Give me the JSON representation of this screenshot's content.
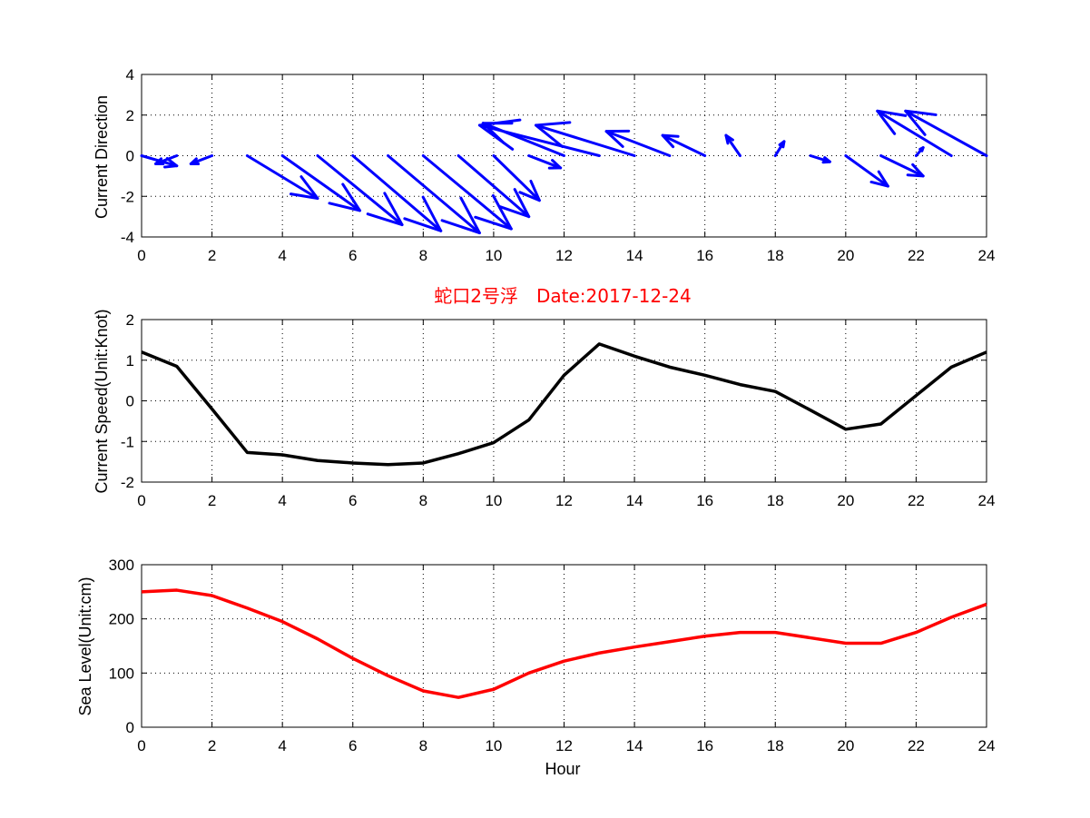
{
  "colors": {
    "arrow": "#0000ff",
    "speed": "#000000",
    "sea": "#ff0000",
    "title": "#ff0000"
  },
  "chart_data": [
    {
      "type": "quiver",
      "ylabel": "Current Direction",
      "xlim": [
        0,
        24
      ],
      "ylim": [
        -4,
        4
      ],
      "xticks": [
        0,
        2,
        4,
        6,
        8,
        10,
        12,
        14,
        16,
        18,
        20,
        22,
        24
      ],
      "yticks": [
        -4,
        -2,
        0,
        2,
        4
      ],
      "grid": true,
      "x": [
        0,
        1,
        2,
        3,
        4,
        5,
        6,
        7,
        8,
        9,
        10,
        11,
        12,
        13,
        14,
        15,
        16,
        17,
        18,
        19,
        20,
        21,
        22,
        23,
        24
      ],
      "u": [
        1.0,
        -0.6,
        -0.6,
        2.0,
        2.2,
        2.4,
        2.5,
        2.6,
        2.5,
        2.0,
        1.3,
        0.9,
        -2.3,
        -3.4,
        -2.8,
        -1.8,
        -1.2,
        -0.4,
        0.25,
        0.55,
        1.2,
        1.2,
        0.2,
        -2.1,
        -2.3
      ],
      "v": [
        -0.5,
        -0.4,
        -0.4,
        -2.1,
        -2.7,
        -3.4,
        -3.7,
        -3.8,
        -3.6,
        -3.0,
        -2.2,
        -0.6,
        1.6,
        1.5,
        1.5,
        1.2,
        1.0,
        1.0,
        0.7,
        -0.3,
        -1.5,
        -1.0,
        0.4,
        2.2,
        2.2
      ]
    },
    {
      "type": "line",
      "title": "蛇口2号浮　Date:2017-12-24",
      "ylabel": "Current Speed(Unit:Knot)",
      "xlim": [
        0,
        24
      ],
      "ylim": [
        -2,
        2
      ],
      "xticks": [
        0,
        2,
        4,
        6,
        8,
        10,
        12,
        14,
        16,
        18,
        20,
        22,
        24
      ],
      "yticks": [
        -2,
        -1,
        0,
        1,
        2
      ],
      "grid": true,
      "x": [
        0,
        1,
        2,
        3,
        4,
        5,
        6,
        7,
        8,
        9,
        10,
        11,
        12,
        13,
        14,
        15,
        16,
        17,
        18,
        19,
        20,
        21,
        22,
        23,
        24
      ],
      "values": [
        1.2,
        0.85,
        -0.2,
        -1.27,
        -1.33,
        -1.47,
        -1.53,
        -1.57,
        -1.53,
        -1.3,
        -1.03,
        -0.47,
        0.63,
        1.4,
        1.1,
        0.83,
        0.63,
        0.4,
        0.23,
        -0.23,
        -0.7,
        -0.57,
        0.13,
        0.83,
        1.2
      ]
    },
    {
      "type": "line",
      "xlabel": "Hour",
      "ylabel": "Sea Level(Unit:cm)",
      "xlim": [
        0,
        24
      ],
      "ylim": [
        0,
        300
      ],
      "xticks": [
        0,
        2,
        4,
        6,
        8,
        10,
        12,
        14,
        16,
        18,
        20,
        22,
        24
      ],
      "yticks": [
        0,
        100,
        200,
        300
      ],
      "grid": true,
      "x": [
        0,
        1,
        2,
        3,
        4,
        5,
        6,
        7,
        8,
        9,
        10,
        11,
        12,
        13,
        14,
        15,
        16,
        17,
        18,
        19,
        20,
        21,
        22,
        23,
        24
      ],
      "values": [
        250,
        253,
        243,
        220,
        195,
        163,
        127,
        95,
        67,
        55,
        70,
        100,
        122,
        137,
        148,
        158,
        168,
        175,
        175,
        165,
        155,
        155,
        175,
        203,
        227
      ]
    }
  ]
}
